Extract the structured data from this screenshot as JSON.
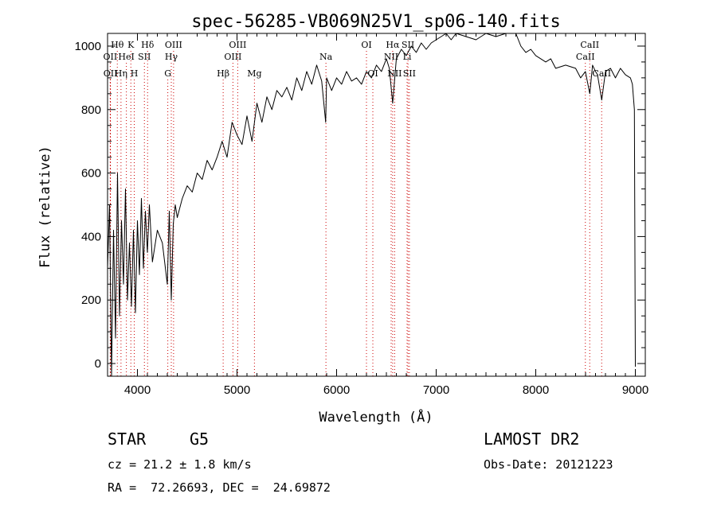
{
  "title": "spec-56285-VB069N25V1_sp06-140.fits",
  "info": {
    "obj_class": "STAR",
    "subclass": "G5",
    "survey": "LAMOST DR2",
    "redshift_line": "cz = 21.2 ± 1.8 km/s",
    "obsdate_line": "Obs-Date: 20121223",
    "coords_line": "RA =  72.26693, DEC =  24.69872"
  },
  "chart_data": {
    "type": "line",
    "title": "spec-56285-VB069N25V1_sp06-140.fits",
    "xlabel": "Wavelength (Å)",
    "ylabel": "Flux (relative)",
    "xlim": [
      3700,
      9100
    ],
    "ylim": [
      -40,
      1040
    ],
    "xticks": [
      4000,
      5000,
      6000,
      7000,
      8000,
      9000
    ],
    "yticks": [
      0,
      200,
      400,
      600,
      800,
      1000
    ],
    "line_color": "#000000",
    "marker_color": "#cc0000",
    "grid": false,
    "series": [
      {
        "x": [
          3700,
          3720,
          3740,
          3760,
          3780,
          3800,
          3820,
          3840,
          3860,
          3880,
          3900,
          3920,
          3940,
          3960,
          3980,
          4000,
          4020,
          4040,
          4060,
          4080,
          4100,
          4120,
          4150,
          4200,
          4250,
          4300,
          4320,
          4340,
          4360,
          4380,
          4400,
          4450,
          4500,
          4550,
          4600,
          4650,
          4700,
          4750,
          4800,
          4850,
          4900,
          4950,
          5000,
          5050,
          5100,
          5150,
          5200,
          5250,
          5300,
          5350,
          5400,
          5450,
          5500,
          5550,
          5600,
          5650,
          5700,
          5750,
          5800,
          5850,
          5890,
          5900,
          5950,
          6000,
          6050,
          6100,
          6150,
          6200,
          6250,
          6300,
          6350,
          6400,
          6450,
          6500,
          6530,
          6563,
          6600,
          6650,
          6700,
          6750,
          6800,
          6850,
          6900,
          6950,
          7000,
          7050,
          7100,
          7150,
          7200,
          7300,
          7400,
          7500,
          7600,
          7700,
          7800,
          7850,
          7900,
          7950,
          8000,
          8050,
          8100,
          8150,
          8200,
          8300,
          8400,
          8450,
          8498,
          8542,
          8570,
          8600,
          8620,
          8662,
          8700,
          8750,
          8800,
          8850,
          8900,
          8950,
          8970,
          8990,
          9000
        ],
        "y": [
          300,
          500,
          -50,
          420,
          80,
          600,
          150,
          450,
          250,
          550,
          200,
          380,
          180,
          420,
          160,
          450,
          280,
          520,
          300,
          480,
          350,
          500,
          320,
          420,
          380,
          250,
          480,
          200,
          440,
          500,
          460,
          520,
          560,
          540,
          600,
          580,
          640,
          610,
          650,
          700,
          650,
          760,
          720,
          690,
          780,
          700,
          820,
          760,
          840,
          800,
          860,
          840,
          870,
          830,
          900,
          860,
          920,
          880,
          940,
          890,
          760,
          900,
          860,
          900,
          880,
          920,
          890,
          900,
          880,
          920,
          900,
          940,
          920,
          960,
          930,
          820,
          960,
          990,
          970,
          1000,
          980,
          1010,
          990,
          1010,
          1020,
          1030,
          1040,
          1020,
          1050,
          1030,
          1020,
          1040,
          1030,
          1040,
          1050,
          1000,
          980,
          990,
          970,
          960,
          950,
          960,
          930,
          940,
          930,
          900,
          920,
          850,
          940,
          920,
          910,
          830,
          920,
          930,
          900,
          930,
          910,
          900,
          880,
          800,
          -10
        ]
      }
    ],
    "line_markers": [
      {
        "label": "Hθ",
        "x": 3798,
        "row": 0
      },
      {
        "label": "K",
        "x": 3934,
        "row": 0
      },
      {
        "label": "Hδ",
        "x": 4102,
        "row": 0
      },
      {
        "label": "OIII",
        "x": 4363,
        "row": 0
      },
      {
        "label": "OIII",
        "x": 5007,
        "row": 0
      },
      {
        "label": "OI",
        "x": 6300,
        "row": 0
      },
      {
        "label": "Hα",
        "x": 6563,
        "row": 0
      },
      {
        "label": "SII",
        "x": 6717,
        "row": 0
      },
      {
        "label": "CaII",
        "x": 8542,
        "row": 0
      },
      {
        "label": "OII",
        "x": 3727,
        "row": 1
      },
      {
        "label": "HeI",
        "x": 3889,
        "row": 1
      },
      {
        "label": "SII",
        "x": 4070,
        "row": 1
      },
      {
        "label": "Hγ",
        "x": 4340,
        "row": 1
      },
      {
        "label": "OIII",
        "x": 4959,
        "row": 1
      },
      {
        "label": "Na",
        "x": 5893,
        "row": 1
      },
      {
        "label": "NII",
        "x": 6548,
        "row": 1
      },
      {
        "label": "Li",
        "x": 6708,
        "row": 1
      },
      {
        "label": "CaII",
        "x": 8498,
        "row": 1
      },
      {
        "label": "OII",
        "x": 3729,
        "row": 2
      },
      {
        "label": "Hη",
        "x": 3835,
        "row": 2
      },
      {
        "label": "H",
        "x": 3968,
        "row": 2
      },
      {
        "label": "G",
        "x": 4305,
        "row": 2
      },
      {
        "label": "Hβ",
        "x": 4861,
        "row": 2
      },
      {
        "label": "Mg",
        "x": 5175,
        "row": 2
      },
      {
        "label": "OI",
        "x": 6364,
        "row": 2
      },
      {
        "label": "NII",
        "x": 6583,
        "row": 2
      },
      {
        "label": "SII",
        "x": 6731,
        "row": 2
      },
      {
        "label": "CaII",
        "x": 8662,
        "row": 2
      }
    ]
  }
}
